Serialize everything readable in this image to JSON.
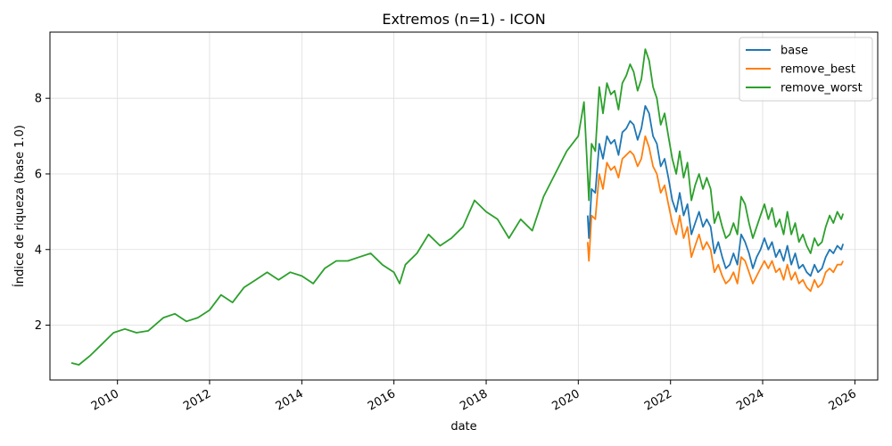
{
  "chart_data": {
    "type": "line",
    "title": "Extremos (n=1) - ICON",
    "xlabel": "date",
    "ylabel": "Índice de riqueza (base 1.0)",
    "xlim": [
      "2008-07-15",
      "2026-07-01"
    ],
    "ylim": [
      0.55,
      9.75
    ],
    "grid": true,
    "legend_position": "top-right",
    "x_ticks": [
      {
        "value": "2010-01-01",
        "label": "2010"
      },
      {
        "value": "2012-01-01",
        "label": "2012"
      },
      {
        "value": "2014-01-01",
        "label": "2014"
      },
      {
        "value": "2016-01-01",
        "label": "2016"
      },
      {
        "value": "2018-01-01",
        "label": "2018"
      },
      {
        "value": "2020-01-01",
        "label": "2020"
      },
      {
        "value": "2022-01-01",
        "label": "2022"
      },
      {
        "value": "2024-01-01",
        "label": "2024"
      },
      {
        "value": "2026-01-01",
        "label": "2026"
      }
    ],
    "y_ticks": [
      {
        "value": 2,
        "label": "2"
      },
      {
        "value": 4,
        "label": "4"
      },
      {
        "value": 6,
        "label": "6"
      },
      {
        "value": 8,
        "label": "8"
      }
    ],
    "series": [
      {
        "name": "base",
        "color": "#1f77b4",
        "points": [
          [
            "2020-03-15",
            4.9
          ],
          [
            "2020-03-25",
            4.3
          ],
          [
            "2020-04-15",
            5.6
          ],
          [
            "2020-05-15",
            5.5
          ],
          [
            "2020-06-15",
            6.8
          ],
          [
            "2020-07-15",
            6.4
          ],
          [
            "2020-08-15",
            7.0
          ],
          [
            "2020-09-15",
            6.8
          ],
          [
            "2020-10-15",
            6.9
          ],
          [
            "2020-11-15",
            6.5
          ],
          [
            "2020-12-15",
            7.1
          ],
          [
            "2021-01-15",
            7.2
          ],
          [
            "2021-02-15",
            7.4
          ],
          [
            "2021-03-15",
            7.3
          ],
          [
            "2021-04-15",
            6.9
          ],
          [
            "2021-05-15",
            7.2
          ],
          [
            "2021-06-15",
            7.8
          ],
          [
            "2021-07-15",
            7.6
          ],
          [
            "2021-08-15",
            7.0
          ],
          [
            "2021-09-15",
            6.8
          ],
          [
            "2021-10-15",
            6.2
          ],
          [
            "2021-11-15",
            6.4
          ],
          [
            "2021-12-15",
            5.9
          ],
          [
            "2022-01-15",
            5.3
          ],
          [
            "2022-02-15",
            5.0
          ],
          [
            "2022-03-15",
            5.5
          ],
          [
            "2022-04-15",
            4.9
          ],
          [
            "2022-05-15",
            5.2
          ],
          [
            "2022-06-15",
            4.4
          ],
          [
            "2022-07-15",
            4.7
          ],
          [
            "2022-08-15",
            5.0
          ],
          [
            "2022-09-15",
            4.6
          ],
          [
            "2022-10-15",
            4.8
          ],
          [
            "2022-11-15",
            4.6
          ],
          [
            "2022-12-15",
            3.9
          ],
          [
            "2023-01-15",
            4.2
          ],
          [
            "2023-02-15",
            3.8
          ],
          [
            "2023-03-15",
            3.5
          ],
          [
            "2023-04-15",
            3.6
          ],
          [
            "2023-05-15",
            3.9
          ],
          [
            "2023-06-15",
            3.6
          ],
          [
            "2023-07-15",
            4.4
          ],
          [
            "2023-08-15",
            4.2
          ],
          [
            "2023-09-15",
            3.9
          ],
          [
            "2023-10-15",
            3.5
          ],
          [
            "2023-11-15",
            3.8
          ],
          [
            "2023-12-15",
            4.0
          ],
          [
            "2024-01-15",
            4.3
          ],
          [
            "2024-02-15",
            4.0
          ],
          [
            "2024-03-15",
            4.2
          ],
          [
            "2024-04-15",
            3.8
          ],
          [
            "2024-05-15",
            4.0
          ],
          [
            "2024-06-15",
            3.7
          ],
          [
            "2024-07-15",
            4.1
          ],
          [
            "2024-08-15",
            3.6
          ],
          [
            "2024-09-15",
            3.9
          ],
          [
            "2024-10-15",
            3.5
          ],
          [
            "2024-11-15",
            3.6
          ],
          [
            "2024-12-15",
            3.4
          ],
          [
            "2025-01-15",
            3.3
          ],
          [
            "2025-02-15",
            3.6
          ],
          [
            "2025-03-15",
            3.4
          ],
          [
            "2025-04-15",
            3.5
          ],
          [
            "2025-05-15",
            3.8
          ],
          [
            "2025-06-15",
            4.0
          ],
          [
            "2025-07-15",
            3.9
          ],
          [
            "2025-08-15",
            4.1
          ],
          [
            "2025-09-15",
            4.0
          ],
          [
            "2025-09-30",
            4.15
          ]
        ]
      },
      {
        "name": "remove_best",
        "color": "#ff7f0e",
        "points": [
          [
            "2020-03-15",
            4.2
          ],
          [
            "2020-03-25",
            3.7
          ],
          [
            "2020-04-15",
            4.9
          ],
          [
            "2020-05-15",
            4.8
          ],
          [
            "2020-06-15",
            6.0
          ],
          [
            "2020-07-15",
            5.6
          ],
          [
            "2020-08-15",
            6.3
          ],
          [
            "2020-09-15",
            6.1
          ],
          [
            "2020-10-15",
            6.2
          ],
          [
            "2020-11-15",
            5.9
          ],
          [
            "2020-12-15",
            6.4
          ],
          [
            "2021-01-15",
            6.5
          ],
          [
            "2021-02-15",
            6.6
          ],
          [
            "2021-03-15",
            6.5
          ],
          [
            "2021-04-15",
            6.2
          ],
          [
            "2021-05-15",
            6.4
          ],
          [
            "2021-06-15",
            7.0
          ],
          [
            "2021-07-15",
            6.7
          ],
          [
            "2021-08-15",
            6.2
          ],
          [
            "2021-09-15",
            6.0
          ],
          [
            "2021-10-15",
            5.5
          ],
          [
            "2021-11-15",
            5.7
          ],
          [
            "2021-12-15",
            5.2
          ],
          [
            "2022-01-15",
            4.7
          ],
          [
            "2022-02-15",
            4.4
          ],
          [
            "2022-03-15",
            4.9
          ],
          [
            "2022-04-15",
            4.3
          ],
          [
            "2022-05-15",
            4.6
          ],
          [
            "2022-06-15",
            3.8
          ],
          [
            "2022-07-15",
            4.1
          ],
          [
            "2022-08-15",
            4.4
          ],
          [
            "2022-09-15",
            4.0
          ],
          [
            "2022-10-15",
            4.2
          ],
          [
            "2022-11-15",
            4.0
          ],
          [
            "2022-12-15",
            3.4
          ],
          [
            "2023-01-15",
            3.6
          ],
          [
            "2023-02-15",
            3.3
          ],
          [
            "2023-03-15",
            3.1
          ],
          [
            "2023-04-15",
            3.2
          ],
          [
            "2023-05-15",
            3.4
          ],
          [
            "2023-06-15",
            3.1
          ],
          [
            "2023-07-15",
            3.8
          ],
          [
            "2023-08-15",
            3.7
          ],
          [
            "2023-09-15",
            3.4
          ],
          [
            "2023-10-15",
            3.1
          ],
          [
            "2023-11-15",
            3.3
          ],
          [
            "2023-12-15",
            3.5
          ],
          [
            "2024-01-15",
            3.7
          ],
          [
            "2024-02-15",
            3.5
          ],
          [
            "2024-03-15",
            3.7
          ],
          [
            "2024-04-15",
            3.4
          ],
          [
            "2024-05-15",
            3.5
          ],
          [
            "2024-06-15",
            3.2
          ],
          [
            "2024-07-15",
            3.6
          ],
          [
            "2024-08-15",
            3.2
          ],
          [
            "2024-09-15",
            3.4
          ],
          [
            "2024-10-15",
            3.1
          ],
          [
            "2024-11-15",
            3.2
          ],
          [
            "2024-12-15",
            3.0
          ],
          [
            "2025-01-15",
            2.9
          ],
          [
            "2025-02-15",
            3.2
          ],
          [
            "2025-03-15",
            3.0
          ],
          [
            "2025-04-15",
            3.1
          ],
          [
            "2025-05-15",
            3.4
          ],
          [
            "2025-06-15",
            3.5
          ],
          [
            "2025-07-15",
            3.4
          ],
          [
            "2025-08-15",
            3.6
          ],
          [
            "2025-09-15",
            3.6
          ],
          [
            "2025-09-30",
            3.7
          ]
        ]
      },
      {
        "name": "remove_worst",
        "color": "#2ca02c",
        "points": [
          [
            "2009-01-01",
            1.0
          ],
          [
            "2009-03-01",
            0.95
          ],
          [
            "2009-06-01",
            1.2
          ],
          [
            "2009-09-01",
            1.5
          ],
          [
            "2009-12-01",
            1.8
          ],
          [
            "2010-03-01",
            1.9
          ],
          [
            "2010-06-01",
            1.8
          ],
          [
            "2010-09-01",
            1.85
          ],
          [
            "2011-01-01",
            2.2
          ],
          [
            "2011-04-01",
            2.3
          ],
          [
            "2011-07-01",
            2.1
          ],
          [
            "2011-10-01",
            2.2
          ],
          [
            "2012-01-01",
            2.4
          ],
          [
            "2012-04-01",
            2.8
          ],
          [
            "2012-07-01",
            2.6
          ],
          [
            "2012-10-01",
            3.0
          ],
          [
            "2013-01-01",
            3.2
          ],
          [
            "2013-04-01",
            3.4
          ],
          [
            "2013-07-01",
            3.2
          ],
          [
            "2013-10-01",
            3.4
          ],
          [
            "2014-01-01",
            3.3
          ],
          [
            "2014-04-01",
            3.1
          ],
          [
            "2014-07-01",
            3.5
          ],
          [
            "2014-10-01",
            3.7
          ],
          [
            "2015-01-01",
            3.7
          ],
          [
            "2015-04-01",
            3.8
          ],
          [
            "2015-07-01",
            3.9
          ],
          [
            "2015-10-01",
            3.6
          ],
          [
            "2016-01-01",
            3.4
          ],
          [
            "2016-02-15",
            3.1
          ],
          [
            "2016-04-01",
            3.6
          ],
          [
            "2016-07-01",
            3.9
          ],
          [
            "2016-10-01",
            4.4
          ],
          [
            "2017-01-01",
            4.1
          ],
          [
            "2017-04-01",
            4.3
          ],
          [
            "2017-07-01",
            4.6
          ],
          [
            "2017-10-01",
            5.3
          ],
          [
            "2018-01-01",
            5.0
          ],
          [
            "2018-04-01",
            4.8
          ],
          [
            "2018-07-01",
            4.3
          ],
          [
            "2018-10-01",
            4.8
          ],
          [
            "2019-01-01",
            4.5
          ],
          [
            "2019-04-01",
            5.4
          ],
          [
            "2019-07-01",
            6.0
          ],
          [
            "2019-10-01",
            6.6
          ],
          [
            "2020-01-01",
            7.0
          ],
          [
            "2020-02-15",
            7.9
          ],
          [
            "2020-03-15",
            6.0
          ],
          [
            "2020-03-25",
            5.3
          ],
          [
            "2020-04-15",
            6.8
          ],
          [
            "2020-05-15",
            6.6
          ],
          [
            "2020-06-15",
            8.3
          ],
          [
            "2020-07-15",
            7.6
          ],
          [
            "2020-08-15",
            8.4
          ],
          [
            "2020-09-15",
            8.1
          ],
          [
            "2020-10-15",
            8.2
          ],
          [
            "2020-11-15",
            7.7
          ],
          [
            "2020-12-15",
            8.4
          ],
          [
            "2021-01-15",
            8.6
          ],
          [
            "2021-02-15",
            8.9
          ],
          [
            "2021-03-15",
            8.7
          ],
          [
            "2021-04-15",
            8.2
          ],
          [
            "2021-05-15",
            8.5
          ],
          [
            "2021-06-15",
            9.3
          ],
          [
            "2021-07-15",
            9.0
          ],
          [
            "2021-08-15",
            8.3
          ],
          [
            "2021-09-15",
            8.0
          ],
          [
            "2021-10-15",
            7.3
          ],
          [
            "2021-11-15",
            7.6
          ],
          [
            "2021-12-15",
            7.0
          ],
          [
            "2022-01-15",
            6.4
          ],
          [
            "2022-02-15",
            6.0
          ],
          [
            "2022-03-15",
            6.6
          ],
          [
            "2022-04-15",
            5.9
          ],
          [
            "2022-05-15",
            6.3
          ],
          [
            "2022-06-15",
            5.3
          ],
          [
            "2022-07-15",
            5.7
          ],
          [
            "2022-08-15",
            6.0
          ],
          [
            "2022-09-15",
            5.6
          ],
          [
            "2022-10-15",
            5.9
          ],
          [
            "2022-11-15",
            5.6
          ],
          [
            "2022-12-15",
            4.7
          ],
          [
            "2023-01-15",
            5.0
          ],
          [
            "2023-02-15",
            4.6
          ],
          [
            "2023-03-15",
            4.3
          ],
          [
            "2023-04-15",
            4.4
          ],
          [
            "2023-05-15",
            4.7
          ],
          [
            "2023-06-15",
            4.4
          ],
          [
            "2023-07-15",
            5.4
          ],
          [
            "2023-08-15",
            5.2
          ],
          [
            "2023-09-15",
            4.7
          ],
          [
            "2023-10-15",
            4.3
          ],
          [
            "2023-11-15",
            4.6
          ],
          [
            "2023-12-15",
            4.9
          ],
          [
            "2024-01-15",
            5.2
          ],
          [
            "2024-02-15",
            4.8
          ],
          [
            "2024-03-15",
            5.1
          ],
          [
            "2024-04-15",
            4.6
          ],
          [
            "2024-05-15",
            4.8
          ],
          [
            "2024-06-15",
            4.4
          ],
          [
            "2024-07-15",
            5.0
          ],
          [
            "2024-08-15",
            4.4
          ],
          [
            "2024-09-15",
            4.7
          ],
          [
            "2024-10-15",
            4.2
          ],
          [
            "2024-11-15",
            4.4
          ],
          [
            "2024-12-15",
            4.1
          ],
          [
            "2025-01-15",
            3.9
          ],
          [
            "2025-02-15",
            4.3
          ],
          [
            "2025-03-15",
            4.1
          ],
          [
            "2025-04-15",
            4.2
          ],
          [
            "2025-05-15",
            4.6
          ],
          [
            "2025-06-15",
            4.9
          ],
          [
            "2025-07-15",
            4.7
          ],
          [
            "2025-08-15",
            5.0
          ],
          [
            "2025-09-15",
            4.8
          ],
          [
            "2025-09-30",
            4.95
          ]
        ]
      }
    ]
  }
}
